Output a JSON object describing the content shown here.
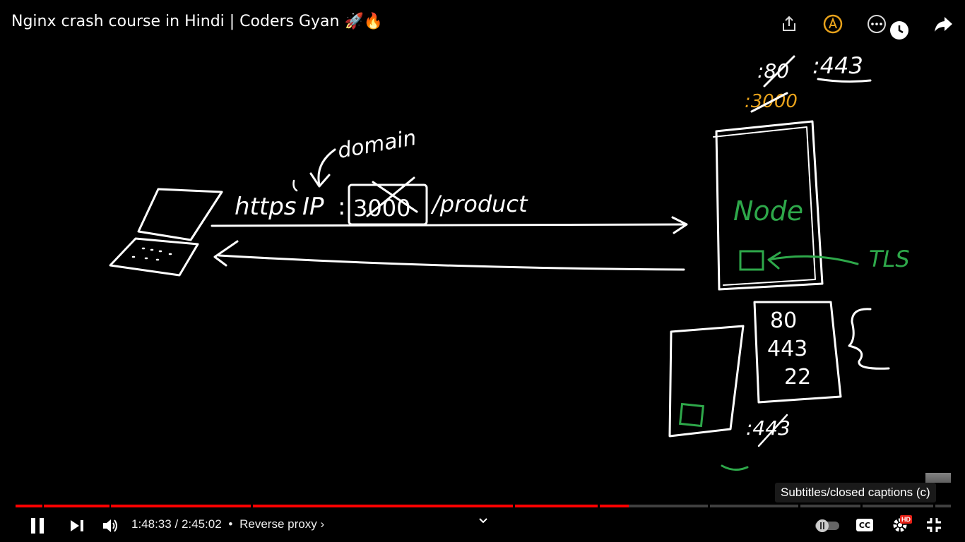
{
  "video": {
    "title": "Nginx crash course in Hindi | Coders Gyan 🚀🔥",
    "current_time": "1:48:33",
    "separator": "/",
    "duration": "2:45:02",
    "chapter_bullet": "•",
    "chapter": "Reverse proxy",
    "chapter_arrow": "›",
    "progress_fraction": 0.658,
    "buffered_fraction": 0.66
  },
  "tooltip": {
    "text": "Subtitles/closed captions (c)"
  },
  "controls": {
    "play_pause_icon": "pause-icon",
    "next_icon": "next-icon",
    "volume_icon": "volume-icon",
    "chevron_icon": "chevron-down-icon",
    "autoplay_icon": "autoplay-toggle-icon",
    "captions_label": "CC",
    "settings_badge": "HD",
    "fullscreen_icon": "exit-fullscreen-icon"
  },
  "top_icons": [
    "share-icon",
    "annotate-icon",
    "more-icon",
    "watch-later-icon",
    "forward-share-icon"
  ],
  "whiteboard": {
    "url_parts": {
      "scheme": "https",
      "ip": "IP",
      "colon": ":",
      "port": "3000",
      "path": "/product"
    },
    "domain_note": "domain",
    "server_label": "Node",
    "tls_label": "TLS",
    "ports_top": {
      "old_port": ":80",
      "new_port": ":443",
      "old_app_port": ":3000"
    },
    "ports_list": [
      "80",
      "443",
      "22"
    ],
    "bottom_port": ":443"
  },
  "colors": {
    "accent_red": "#ff0000",
    "ink_white": "#ffffff",
    "ink_green": "#2ea84a",
    "ink_orange": "#e8a21b",
    "hd_badge": "#e62117"
  }
}
